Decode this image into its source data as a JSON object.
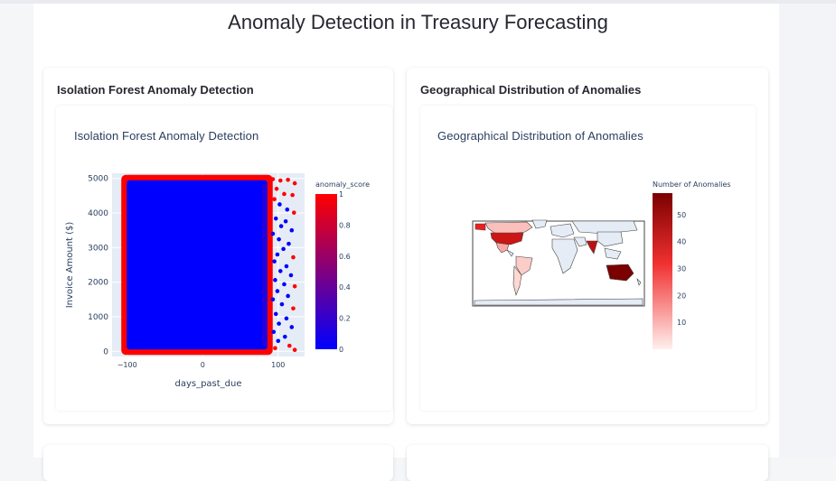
{
  "page": {
    "title": "Anomaly Detection in Treasury Forecasting"
  },
  "cards": [
    {
      "title": "Isolation Forest Anomaly Detection",
      "plot_title": "Isolation Forest Anomaly Detection"
    },
    {
      "title": "Geographical Distribution of Anomalies",
      "plot_title": "Geographical Distribution of Anomalies"
    }
  ],
  "colors": {
    "normal": "#0000ff",
    "anomaly": "#ff0000",
    "plot_bg": "#e5ecf6",
    "map_high": "#7b0000",
    "map_low": "#fff0ee",
    "land": "#e5ecf6"
  },
  "chart_data": [
    {
      "type": "scatter",
      "title": "Isolation Forest Anomaly Detection",
      "xlabel": "days_past_due",
      "ylabel": "Invoice Amount ($)",
      "xlim": [
        -120,
        135
      ],
      "ylim": [
        -150,
        5150
      ],
      "xticks": [
        "−100",
        "0",
        "100"
      ],
      "xtick_values": [
        -100,
        0,
        100
      ],
      "yticks": [
        "0",
        "1000",
        "2000",
        "3000",
        "4000",
        "5000"
      ],
      "ytick_values": [
        0,
        1000,
        2000,
        3000,
        4000,
        5000
      ],
      "normal_region": {
        "x": [
          -103,
          88
        ],
        "y": [
          0,
          5000
        ]
      },
      "color_variable": "anomaly_score",
      "colorbar": {
        "title": "anomaly_score",
        "ticks": [
          "0",
          "0.2",
          "0.4",
          "0.6",
          "0.8",
          "1"
        ],
        "tick_values": [
          0,
          0.2,
          0.4,
          0.6,
          0.8,
          1
        ],
        "range": [
          0,
          1
        ]
      },
      "outlier_points": [
        [
          93,
          4980
        ],
        [
          103,
          4940
        ],
        [
          113,
          4960
        ],
        [
          122,
          4860
        ],
        [
          98,
          4700
        ],
        [
          108,
          4550
        ],
        [
          119,
          4520
        ],
        [
          95,
          4400
        ],
        [
          102,
          4250
        ],
        [
          112,
          4100
        ],
        [
          121,
          4010
        ],
        [
          97,
          3840
        ],
        [
          110,
          3760
        ],
        [
          104,
          3620
        ],
        [
          118,
          3500
        ],
        [
          93,
          3400
        ],
        [
          101,
          3240
        ],
        [
          114,
          3110
        ],
        [
          107,
          2960
        ],
        [
          99,
          2800
        ],
        [
          120,
          2720
        ],
        [
          95,
          2600
        ],
        [
          111,
          2460
        ],
        [
          103,
          2320
        ],
        [
          117,
          2200
        ],
        [
          96,
          2060
        ],
        [
          108,
          1940
        ],
        [
          122,
          1880
        ],
        [
          99,
          1740
        ],
        [
          113,
          1600
        ],
        [
          93,
          1500
        ],
        [
          105,
          1360
        ],
        [
          120,
          1240
        ],
        [
          97,
          1080
        ],
        [
          111,
          950
        ],
        [
          101,
          800
        ],
        [
          118,
          700
        ],
        [
          94,
          560
        ],
        [
          109,
          420
        ],
        [
          100,
          300
        ],
        [
          115,
          160
        ],
        [
          96,
          90
        ],
        [
          122,
          40
        ]
      ]
    },
    {
      "type": "choropleth",
      "title": "Geographical Distribution of Anomalies",
      "colorbar": {
        "title": "Number of Anomalies",
        "ticks": [
          "10",
          "20",
          "30",
          "40",
          "50"
        ],
        "tick_values": [
          10,
          20,
          30,
          40,
          50
        ],
        "range": [
          0,
          58
        ]
      },
      "regions": [
        {
          "name": "Australia",
          "value": 58
        },
        {
          "name": "India",
          "value": 45
        },
        {
          "name": "United States",
          "value": 42
        },
        {
          "name": "Mexico",
          "value": 12
        },
        {
          "name": "Brazil",
          "value": 6
        },
        {
          "name": "Argentina",
          "value": 4
        },
        {
          "name": "Canada",
          "value": 8
        },
        {
          "name": "Alaska",
          "value": 35
        }
      ]
    }
  ]
}
